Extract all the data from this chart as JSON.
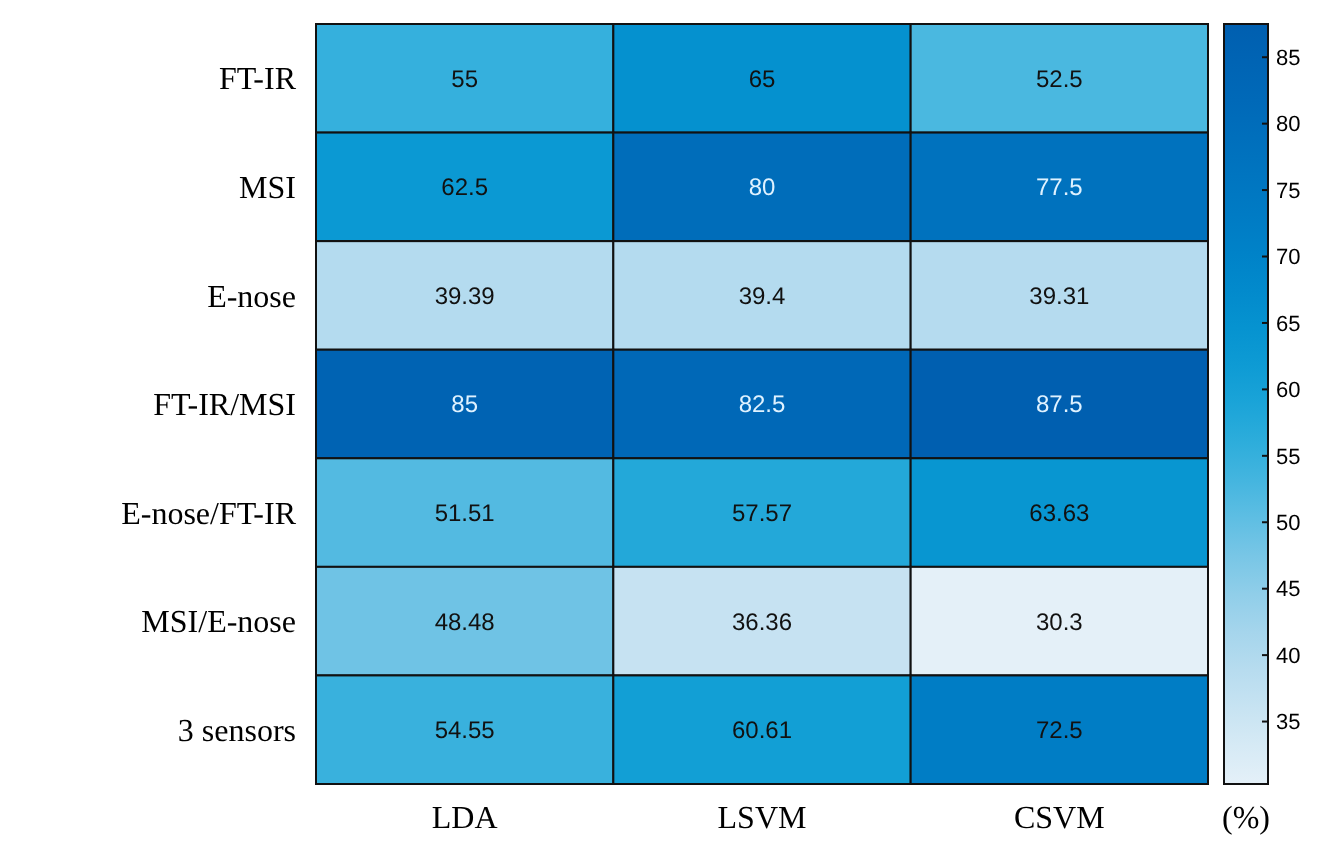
{
  "chart_data": {
    "type": "heatmap",
    "categories": [
      "LDA",
      "LSVM",
      "CSVM"
    ],
    "y_categories": [
      "FT-IR",
      "MSI",
      "E-nose",
      "FT-IR/MSI",
      "E-nose/FT-IR",
      "MSI/E-nose",
      "3 sensors"
    ],
    "cells": [
      [
        55,
        65,
        52.5
      ],
      [
        62.5,
        80,
        77.5
      ],
      [
        39.39,
        39.4,
        39.31
      ],
      [
        85,
        82.5,
        87.5
      ],
      [
        51.51,
        57.57,
        63.63
      ],
      [
        48.48,
        36.36,
        30.3
      ],
      [
        54.55,
        60.61,
        72.5
      ]
    ],
    "data_labels": true,
    "clim": [
      30.3,
      87.5
    ],
    "cticks": [
      35,
      40,
      45,
      50,
      55,
      60,
      65,
      70,
      75,
      80,
      85
    ],
    "clabel": "(%)"
  }
}
